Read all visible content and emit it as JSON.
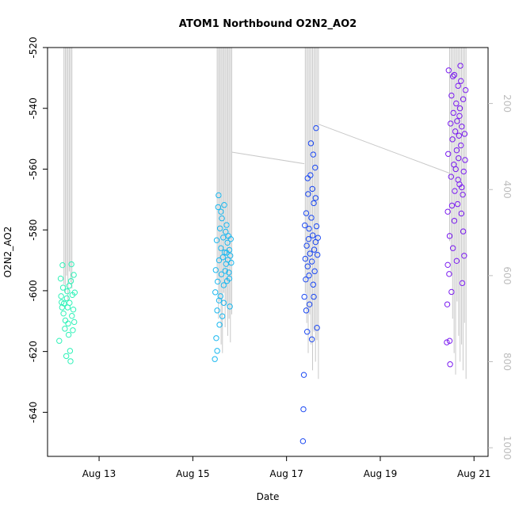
{
  "chart_data": {
    "type": "scatter",
    "title": "ATOM1 Northbound O2N2_AO2",
    "xlabel": "Date",
    "ylabel": "O2N2_AO2",
    "x_unit": "day of August",
    "xlim": [
      11.9,
      21.3
    ],
    "ylim": [
      -654.5,
      -520
    ],
    "x_ticks": [
      13,
      15,
      17,
      19,
      21
    ],
    "x_tick_labels": [
      "Aug 13",
      "Aug 15",
      "Aug 17",
      "Aug 19",
      "Aug 21"
    ],
    "y_ticks": [
      -640,
      -620,
      -600,
      -580,
      -560,
      -540,
      -520
    ],
    "y_tick_labels": [
      "-640",
      "-620",
      "-600",
      "-580",
      "-560",
      "-540",
      "-520"
    ],
    "secondary_axis": {
      "side": "right",
      "color": "#bdbdbd",
      "reversed": true,
      "ylim": [
        1020,
        70
      ],
      "ticks": [
        200,
        400,
        600,
        800,
        1000
      ],
      "tick_labels": [
        "200",
        "400",
        "600",
        "800",
        "1000"
      ]
    },
    "marker": "open-circle",
    "grid": false,
    "series": [
      {
        "color": "#2EF2B8",
        "points": [
          {
            "x": 12.15,
            "y": -616.5
          },
          {
            "x": 12.18,
            "y": -596.0
          },
          {
            "x": 12.19,
            "y": -601.8
          },
          {
            "x": 12.2,
            "y": -603.8
          },
          {
            "x": 12.21,
            "y": -605.5
          },
          {
            "x": 12.22,
            "y": -591.6
          },
          {
            "x": 12.23,
            "y": -599.0
          },
          {
            "x": 12.24,
            "y": -607.5
          },
          {
            "x": 12.25,
            "y": -604.2
          },
          {
            "x": 12.27,
            "y": -612.5
          },
          {
            "x": 12.28,
            "y": -609.8
          },
          {
            "x": 12.3,
            "y": -621.5
          },
          {
            "x": 12.31,
            "y": -602.5
          },
          {
            "x": 12.32,
            "y": -600.2
          },
          {
            "x": 12.33,
            "y": -605.5
          },
          {
            "x": 12.34,
            "y": -610.8
          },
          {
            "x": 12.35,
            "y": -614.5
          },
          {
            "x": 12.36,
            "y": -598.4
          },
          {
            "x": 12.37,
            "y": -604.0
          },
          {
            "x": 12.38,
            "y": -619.8
          },
          {
            "x": 12.39,
            "y": -623.2
          },
          {
            "x": 12.4,
            "y": -596.8
          },
          {
            "x": 12.41,
            "y": -591.3
          },
          {
            "x": 12.42,
            "y": -608.3
          },
          {
            "x": 12.43,
            "y": -601.4
          },
          {
            "x": 12.44,
            "y": -613.0
          },
          {
            "x": 12.45,
            "y": -606.2
          },
          {
            "x": 12.46,
            "y": -594.8
          },
          {
            "x": 12.47,
            "y": -610.3
          },
          {
            "x": 12.48,
            "y": -600.6
          }
        ]
      },
      {
        "color": "#19B8F0",
        "points": [
          {
            "x": 15.47,
            "y": -622.5
          },
          {
            "x": 15.48,
            "y": -600.5
          },
          {
            "x": 15.49,
            "y": -593.2
          },
          {
            "x": 15.5,
            "y": -615.6
          },
          {
            "x": 15.51,
            "y": -583.4
          },
          {
            "x": 15.52,
            "y": -606.5
          },
          {
            "x": 15.53,
            "y": -597.0
          },
          {
            "x": 15.54,
            "y": -572.5
          },
          {
            "x": 15.55,
            "y": -568.6
          },
          {
            "x": 15.56,
            "y": -590.0
          },
          {
            "x": 15.57,
            "y": -611.2
          },
          {
            "x": 15.58,
            "y": -579.5
          },
          {
            "x": 15.59,
            "y": -601.8
          },
          {
            "x": 15.6,
            "y": -586.0
          },
          {
            "x": 15.61,
            "y": -594.6
          },
          {
            "x": 15.62,
            "y": -576.2
          },
          {
            "x": 15.63,
            "y": -608.4
          },
          {
            "x": 15.64,
            "y": -589.0
          },
          {
            "x": 15.65,
            "y": -582.5
          },
          {
            "x": 15.66,
            "y": -598.2
          },
          {
            "x": 15.67,
            "y": -571.8
          },
          {
            "x": 15.68,
            "y": -587.4
          },
          {
            "x": 15.69,
            "y": -593.5
          },
          {
            "x": 15.7,
            "y": -580.6
          },
          {
            "x": 15.71,
            "y": -591.2
          },
          {
            "x": 15.72,
            "y": -578.4
          },
          {
            "x": 15.73,
            "y": -596.8
          },
          {
            "x": 15.74,
            "y": -584.2
          },
          {
            "x": 15.75,
            "y": -589.8
          },
          {
            "x": 15.76,
            "y": -582.0
          },
          {
            "x": 15.77,
            "y": -594.0
          },
          {
            "x": 15.78,
            "y": -586.6
          },
          {
            "x": 15.79,
            "y": -605.2
          },
          {
            "x": 15.8,
            "y": -588.5
          },
          {
            "x": 15.81,
            "y": -583.0
          },
          {
            "x": 15.82,
            "y": -590.8
          },
          {
            "x": 15.52,
            "y": -619.8
          },
          {
            "x": 15.56,
            "y": -603.2
          },
          {
            "x": 15.6,
            "y": -574.0
          },
          {
            "x": 15.66,
            "y": -604.0
          },
          {
            "x": 15.72,
            "y": -587.5
          },
          {
            "x": 15.78,
            "y": -596.0
          }
        ]
      },
      {
        "color": "#1A47F2",
        "points": [
          {
            "x": 17.35,
            "y": -649.5
          },
          {
            "x": 17.36,
            "y": -639.0
          },
          {
            "x": 17.37,
            "y": -627.7
          },
          {
            "x": 17.38,
            "y": -602.0
          },
          {
            "x": 17.39,
            "y": -578.5
          },
          {
            "x": 17.4,
            "y": -589.5
          },
          {
            "x": 17.41,
            "y": -596.3
          },
          {
            "x": 17.42,
            "y": -574.5
          },
          {
            "x": 17.43,
            "y": -585.2
          },
          {
            "x": 17.44,
            "y": -613.5
          },
          {
            "x": 17.45,
            "y": -592.0
          },
          {
            "x": 17.46,
            "y": -568.2
          },
          {
            "x": 17.47,
            "y": -583.0
          },
          {
            "x": 17.48,
            "y": -579.6
          },
          {
            "x": 17.49,
            "y": -604.5
          },
          {
            "x": 17.5,
            "y": -587.8
          },
          {
            "x": 17.51,
            "y": -562.0
          },
          {
            "x": 17.52,
            "y": -551.5
          },
          {
            "x": 17.53,
            "y": -576.0
          },
          {
            "x": 17.54,
            "y": -590.4
          },
          {
            "x": 17.55,
            "y": -566.5
          },
          {
            "x": 17.56,
            "y": -581.8
          },
          {
            "x": 17.57,
            "y": -598.0
          },
          {
            "x": 17.58,
            "y": -571.2
          },
          {
            "x": 17.59,
            "y": -586.5
          },
          {
            "x": 17.6,
            "y": -593.6
          },
          {
            "x": 17.61,
            "y": -559.5
          },
          {
            "x": 17.62,
            "y": -584.0
          },
          {
            "x": 17.63,
            "y": -546.5
          },
          {
            "x": 17.64,
            "y": -578.8
          },
          {
            "x": 17.65,
            "y": -612.2
          },
          {
            "x": 17.66,
            "y": -588.2
          },
          {
            "x": 17.67,
            "y": -582.6
          },
          {
            "x": 17.42,
            "y": -606.5
          },
          {
            "x": 17.48,
            "y": -595.0
          },
          {
            "x": 17.54,
            "y": -616.0
          },
          {
            "x": 17.58,
            "y": -602.0
          },
          {
            "x": 17.62,
            "y": -569.5
          },
          {
            "x": 17.45,
            "y": -563.0
          },
          {
            "x": 17.57,
            "y": -555.2
          }
        ]
      },
      {
        "color": "#7A1AF0",
        "points": [
          {
            "x": 20.42,
            "y": -617.0
          },
          {
            "x": 20.43,
            "y": -604.5
          },
          {
            "x": 20.44,
            "y": -574.0
          },
          {
            "x": 20.45,
            "y": -555.0
          },
          {
            "x": 20.46,
            "y": -527.5
          },
          {
            "x": 20.47,
            "y": -594.5
          },
          {
            "x": 20.48,
            "y": -616.5
          },
          {
            "x": 20.49,
            "y": -624.2
          },
          {
            "x": 20.5,
            "y": -545.0
          },
          {
            "x": 20.51,
            "y": -562.5
          },
          {
            "x": 20.52,
            "y": -535.8
          },
          {
            "x": 20.53,
            "y": -572.0
          },
          {
            "x": 20.54,
            "y": -550.2
          },
          {
            "x": 20.55,
            "y": -586.0
          },
          {
            "x": 20.56,
            "y": -541.5
          },
          {
            "x": 20.57,
            "y": -558.5
          },
          {
            "x": 20.58,
            "y": -529.0
          },
          {
            "x": 20.59,
            "y": -567.2
          },
          {
            "x": 20.6,
            "y": -547.6
          },
          {
            "x": 20.61,
            "y": -560.0
          },
          {
            "x": 20.62,
            "y": -538.4
          },
          {
            "x": 20.63,
            "y": -553.8
          },
          {
            "x": 20.64,
            "y": -544.2
          },
          {
            "x": 20.65,
            "y": -571.5
          },
          {
            "x": 20.66,
            "y": -532.6
          },
          {
            "x": 20.67,
            "y": -556.4
          },
          {
            "x": 20.68,
            "y": -549.0
          },
          {
            "x": 20.69,
            "y": -565.0
          },
          {
            "x": 20.7,
            "y": -540.0
          },
          {
            "x": 20.71,
            "y": -526.0
          },
          {
            "x": 20.72,
            "y": -552.2
          },
          {
            "x": 20.73,
            "y": -574.6
          },
          {
            "x": 20.74,
            "y": -546.0
          },
          {
            "x": 20.75,
            "y": -597.5
          },
          {
            "x": 20.76,
            "y": -568.4
          },
          {
            "x": 20.77,
            "y": -537.0
          },
          {
            "x": 20.78,
            "y": -560.8
          },
          {
            "x": 20.79,
            "y": -588.5
          },
          {
            "x": 20.8,
            "y": -548.4
          },
          {
            "x": 20.48,
            "y": -582.0
          },
          {
            "x": 20.52,
            "y": -600.4
          },
          {
            "x": 20.58,
            "y": -577.0
          },
          {
            "x": 20.63,
            "y": -590.2
          },
          {
            "x": 20.69,
            "y": -542.5
          },
          {
            "x": 20.74,
            "y": -566.0
          },
          {
            "x": 20.77,
            "y": -580.5
          },
          {
            "x": 20.81,
            "y": -557.0
          },
          {
            "x": 20.82,
            "y": -534.0
          },
          {
            "x": 20.44,
            "y": -591.5
          },
          {
            "x": 20.55,
            "y": -529.5
          },
          {
            "x": 20.66,
            "y": -563.5
          },
          {
            "x": 20.72,
            "y": -531.0
          }
        ]
      }
    ],
    "secondary_series": {
      "color": "#c8c8c8",
      "bursts": [
        {
          "x_range": [
            12.25,
            12.42
          ],
          "top": 70,
          "low_values": [
            620,
            640,
            600,
            660,
            590,
            615,
            630
          ]
        },
        {
          "x_range": [
            15.52,
            15.83
          ],
          "top": 70,
          "low_values": [
            610,
            700,
            660,
            760,
            780,
            640,
            720,
            670,
            740,
            700,
            755,
            690
          ]
        },
        {
          "x_range": [
            17.4,
            17.68
          ],
          "top": 70,
          "low_values": [
            640,
            710,
            780,
            690,
            760,
            820,
            730,
            800,
            750,
            840
          ]
        },
        {
          "x_range": [
            20.48,
            20.83
          ],
          "top": 70,
          "low_values": [
            520,
            600,
            700,
            780,
            830,
            660,
            740,
            800,
            760,
            820,
            710,
            840
          ]
        }
      ],
      "connectors": [
        {
          "from": [
            15.83,
            313
          ],
          "to": [
            17.38,
            340
          ]
        },
        {
          "from": [
            17.68,
            248
          ],
          "to": [
            20.48,
            362
          ]
        }
      ]
    }
  }
}
